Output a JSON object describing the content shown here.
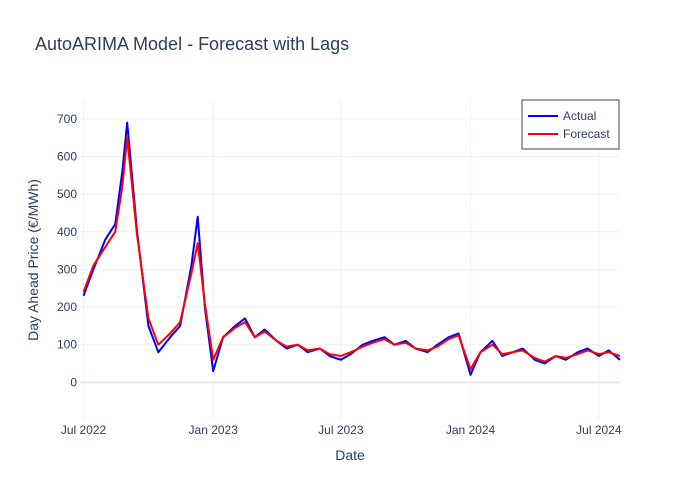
{
  "chart_data": {
    "type": "line",
    "title": "AutoARIMA Model - Forecast with Lags",
    "xlabel": "Date",
    "ylabel": "Day Ahead Price (€/MWh)",
    "xlim": [
      "2022-06-26",
      "2024-07-31"
    ],
    "ylim": [
      -100,
      750
    ],
    "grid": true,
    "legend_position": "top-right",
    "x_ticks": [
      {
        "date": "2022-07-01",
        "label": "Jul 2022"
      },
      {
        "date": "2023-01-01",
        "label": "Jan 2023"
      },
      {
        "date": "2023-07-01",
        "label": "Jul 2023"
      },
      {
        "date": "2024-01-01",
        "label": "Jan 2024"
      },
      {
        "date": "2024-07-01",
        "label": "Jul 2024"
      }
    ],
    "y_ticks": [
      0,
      100,
      200,
      300,
      400,
      500,
      600,
      700
    ],
    "x": [
      "2022-07-01",
      "2022-07-15",
      "2022-08-01",
      "2022-08-15",
      "2022-08-25",
      "2022-09-01",
      "2022-09-15",
      "2022-10-01",
      "2022-10-15",
      "2022-11-01",
      "2022-11-15",
      "2022-12-01",
      "2022-12-10",
      "2022-12-20",
      "2023-01-01",
      "2023-01-15",
      "2023-02-01",
      "2023-02-15",
      "2023-03-01",
      "2023-03-15",
      "2023-04-01",
      "2023-04-15",
      "2023-05-01",
      "2023-05-15",
      "2023-06-01",
      "2023-06-15",
      "2023-07-01",
      "2023-07-15",
      "2023-08-01",
      "2023-08-15",
      "2023-09-01",
      "2023-09-15",
      "2023-10-01",
      "2023-10-15",
      "2023-11-01",
      "2023-11-15",
      "2023-12-01",
      "2023-12-15",
      "2024-01-01",
      "2024-01-15",
      "2024-02-01",
      "2024-02-15",
      "2024-03-01",
      "2024-03-15",
      "2024-04-01",
      "2024-04-15",
      "2024-05-01",
      "2024-05-15",
      "2024-06-01",
      "2024-06-15",
      "2024-07-01",
      "2024-07-15",
      "2024-07-31"
    ],
    "series": [
      {
        "name": "Actual",
        "color": "#0000ff",
        "values": [
          230,
          300,
          380,
          420,
          560,
          690,
          400,
          150,
          80,
          120,
          150,
          310,
          440,
          200,
          30,
          120,
          150,
          170,
          120,
          140,
          110,
          90,
          100,
          80,
          90,
          70,
          60,
          75,
          100,
          110,
          120,
          100,
          110,
          90,
          80,
          100,
          120,
          130,
          20,
          80,
          110,
          70,
          80,
          90,
          60,
          50,
          70,
          60,
          80,
          90,
          70,
          85,
          60
        ]
      },
      {
        "name": "Forecast",
        "color": "#ff0000",
        "values": [
          240,
          310,
          360,
          400,
          520,
          650,
          390,
          170,
          100,
          130,
          160,
          290,
          370,
          210,
          60,
          120,
          145,
          160,
          120,
          135,
          110,
          95,
          100,
          85,
          90,
          75,
          70,
          80,
          95,
          105,
          115,
          100,
          105,
          90,
          85,
          95,
          115,
          125,
          35,
          80,
          100,
          75,
          80,
          85,
          65,
          55,
          70,
          65,
          75,
          85,
          75,
          80,
          70
        ]
      }
    ]
  }
}
